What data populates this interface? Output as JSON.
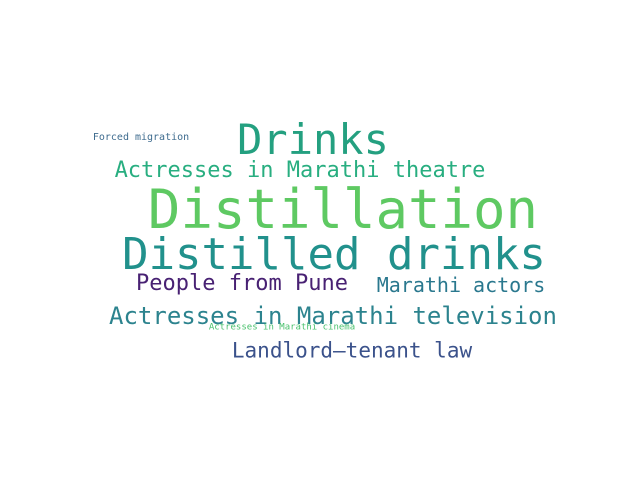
{
  "cloud": {
    "words": [
      {
        "id": "w-forced",
        "text": "Forced migration",
        "color": "#3f6c8f"
      },
      {
        "id": "w-drinks",
        "text": "Drinks",
        "color": "#24a080"
      },
      {
        "id": "w-theatre",
        "text": "Actresses in Marathi theatre",
        "color": "#28ae80"
      },
      {
        "id": "w-distil",
        "text": "Distillation",
        "color": "#5ec962"
      },
      {
        "id": "w-distdr",
        "text": "Distilled drinks",
        "color": "#21918c"
      },
      {
        "id": "w-pune",
        "text": "People from Pune",
        "color": "#482173"
      },
      {
        "id": "w-maract",
        "text": "Marathi actors",
        "color": "#2a788e"
      },
      {
        "id": "w-tv",
        "text": "Actresses in Marathi television",
        "color": "#2c838e"
      },
      {
        "id": "w-cinema",
        "text": "Actresses in Marathi cinema",
        "color": "#4ac16d"
      },
      {
        "id": "w-landlord",
        "text": "Landlord–tenant law",
        "color": "#3b528b"
      }
    ]
  }
}
